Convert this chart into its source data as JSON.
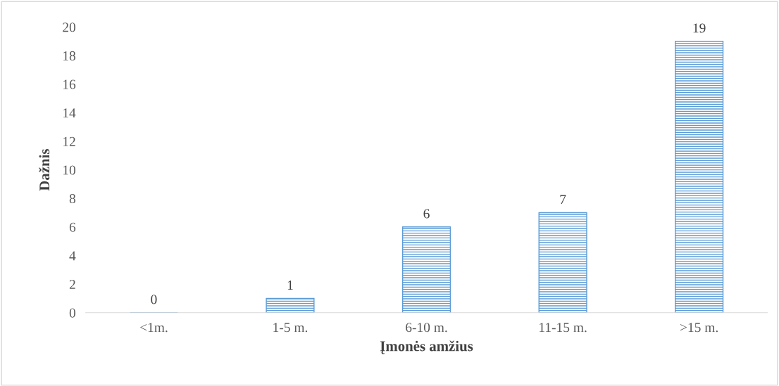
{
  "chart_data": {
    "type": "bar",
    "xlabel": "Įmonės amžius",
    "ylabel": "Dažnis",
    "categories": [
      "<1m.",
      "1-5 m.",
      "6-10 m.",
      "11-15 m.",
      ">15 m."
    ],
    "values": [
      0,
      1,
      6,
      7,
      19
    ],
    "color": "#5b9bd5",
    "ylim": [
      0,
      20
    ],
    "yticks": [
      0,
      2,
      4,
      6,
      8,
      10,
      12,
      14,
      16,
      18,
      20
    ],
    "grid": false,
    "data_labels": true
  }
}
